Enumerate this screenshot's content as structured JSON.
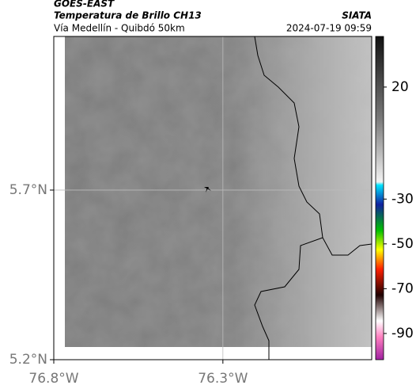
{
  "header": {
    "title": "GOES-EAST",
    "subtitle": "Temperatura de Brillo CH13",
    "location": "Vía Medellín - Quibdó 50km",
    "source": "SIATA",
    "datetime": "2024-07-19 09:59"
  },
  "map": {
    "latlim": [
      5.2,
      6.153
    ],
    "lonlim": [
      -76.8,
      -75.86
    ],
    "lat_ticks": [
      {
        "value": 5.7,
        "label": "5.7°N"
      },
      {
        "value": 5.2,
        "label": "5.2°N"
      }
    ],
    "lon_ticks": [
      {
        "value": -76.8,
        "label": "76.8°W"
      },
      {
        "value": -76.3,
        "label": "76.3°W"
      }
    ]
  },
  "colorbar": {
    "lim": [
      -101.7,
      42.6
    ],
    "ticks": [
      20,
      -30,
      -50,
      -70,
      -90
    ]
  }
}
